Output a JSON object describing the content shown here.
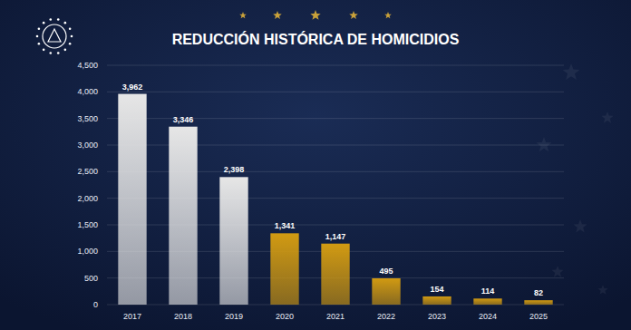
{
  "chart_data": {
    "type": "bar",
    "title": "REDUCCIÓN HISTÓRICA DE HOMICIDIOS",
    "categories": [
      "2017",
      "2018",
      "2019",
      "2020",
      "2021",
      "2022",
      "2023",
      "2024",
      "2025"
    ],
    "values": [
      3962,
      3346,
      2398,
      1341,
      1147,
      495,
      154,
      114,
      82
    ],
    "value_labels": [
      "3,962",
      "3,346",
      "2,398",
      "1,341",
      "1,147",
      "495",
      "154",
      "114",
      "82"
    ],
    "colors": [
      "#e6e6e6",
      "#e6e6e6",
      "#e6e6e6",
      "#d19a12",
      "#d19a12",
      "#d19a12",
      "#d19a12",
      "#d19a12",
      "#d19a12"
    ],
    "ylim": [
      0,
      4500
    ],
    "yticks": [
      0,
      500,
      {
        "value": 1000,
        "label": "1,000"
      },
      {
        "value": 1500,
        "label": "1,500"
      },
      {
        "value": 2000,
        "label": "2,000"
      },
      {
        "value": 2500,
        "label": "2,500"
      },
      {
        "value": 3000,
        "label": "3,000"
      },
      {
        "value": 3500,
        "label": "3,500"
      },
      {
        "value": 4000,
        "label": "4,000"
      },
      {
        "value": 4500,
        "label": "4,500"
      }
    ],
    "grid": true,
    "data_labels": true
  }
}
